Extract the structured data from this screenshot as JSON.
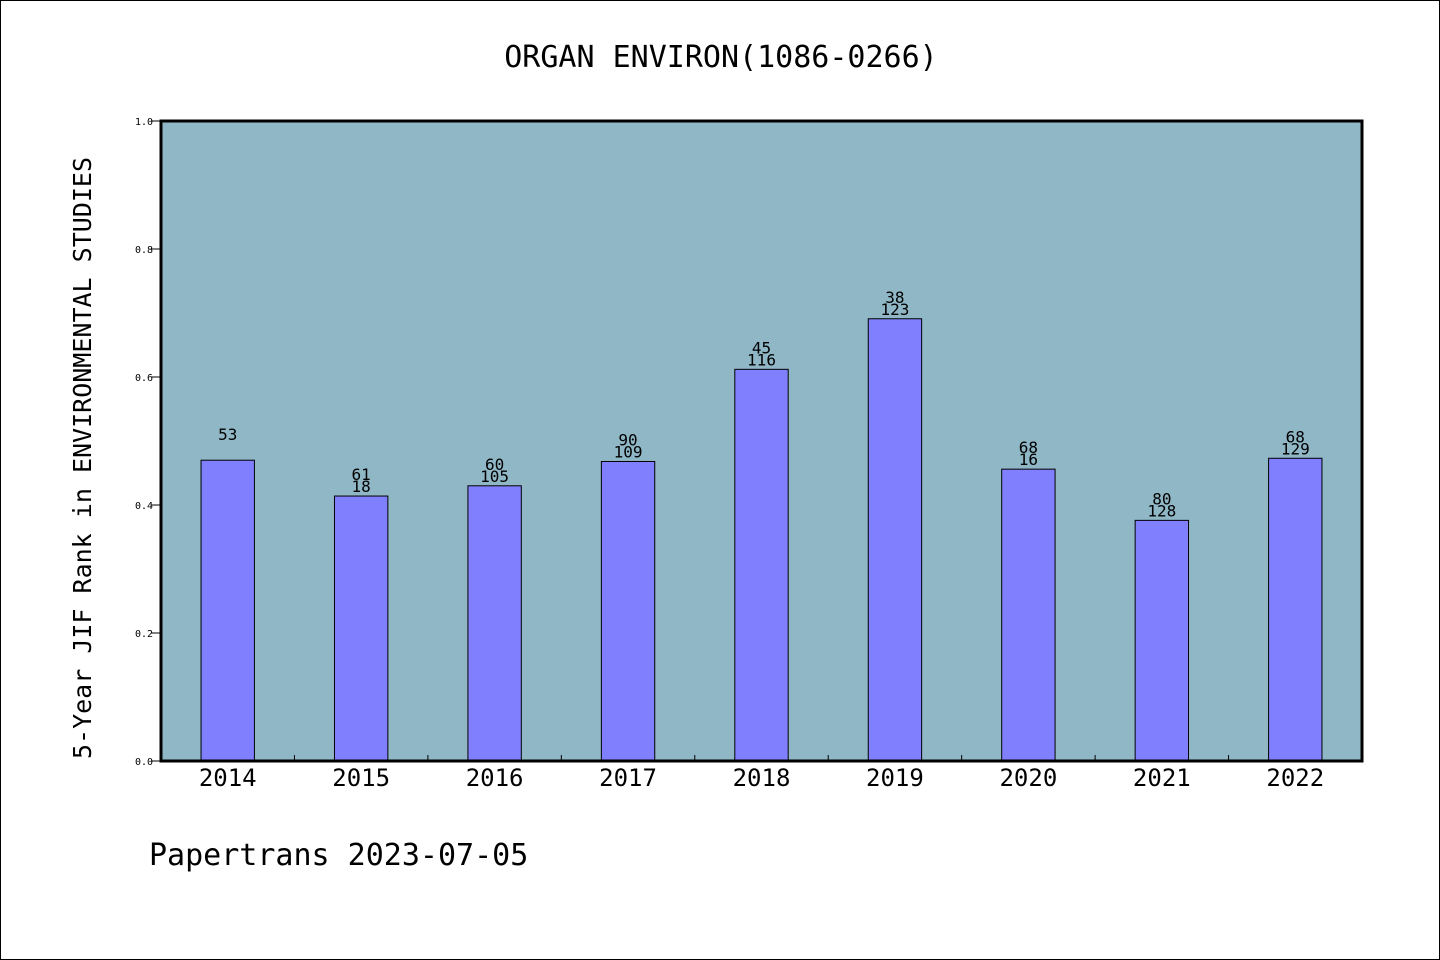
{
  "chart_data": {
    "type": "bar",
    "title": "ORGAN ENVIRON(1086-0266)",
    "ylabel": "5-Year JIF Rank in ENVIRONMENTAL STUDIES",
    "xlabel": "",
    "ylim": [
      0,
      1.0
    ],
    "yticks": [
      "0.0",
      "0.2",
      "0.4",
      "0.6",
      "0.8",
      "1.0"
    ],
    "categories": [
      "2014",
      "2015",
      "2016",
      "2017",
      "2018",
      "2019",
      "2020",
      "2021",
      "2022"
    ],
    "values": [
      0.47,
      0.414,
      0.43,
      0.468,
      0.612,
      0.691,
      0.456,
      0.376,
      0.473
    ],
    "rank_labels": [
      "53",
      "61",
      "60",
      "90",
      "45",
      "38",
      "68",
      "80",
      "68"
    ],
    "total_labels": [
      "",
      "18",
      "105",
      "109",
      "116",
      "123",
      "16",
      "128",
      "129"
    ],
    "grid": false,
    "colors": {
      "plot_background": "#8fb7c6",
      "bar": "#8080ff",
      "bar_edge": "#000000"
    }
  },
  "footer": "Papertrans 2023-07-05"
}
